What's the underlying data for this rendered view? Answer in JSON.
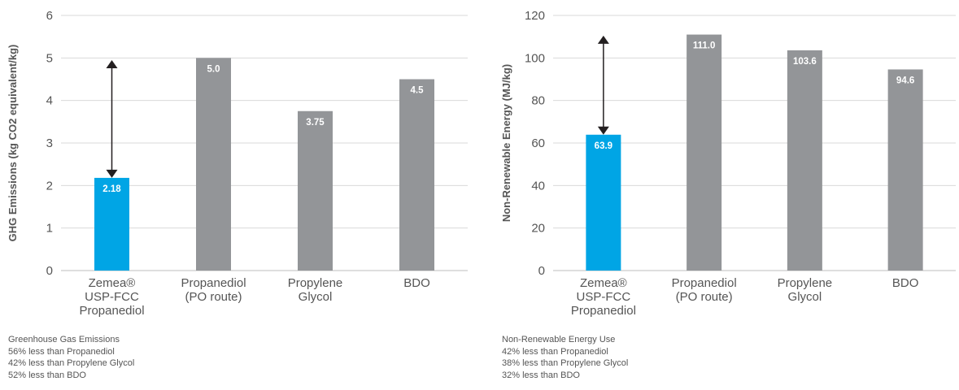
{
  "chart_data": [
    {
      "type": "bar",
      "ylabel": "GHG Emissions (kg CO2 equivalent/kg)",
      "ylim": [
        0,
        6
      ],
      "yticks": [
        0,
        1,
        2,
        3,
        4,
        5,
        6
      ],
      "categories": [
        [
          "Zemea®",
          "USP-FCC",
          "Propanediol"
        ],
        [
          "Propanediol",
          "(PO route)"
        ],
        [
          "Propylene",
          "Glycol"
        ],
        [
          "BDO"
        ]
      ],
      "values": [
        2.18,
        5.0,
        3.75,
        4.5
      ],
      "data_labels": [
        "2.18",
        "5.0",
        "3.75",
        "4.5"
      ],
      "colors": [
        "#00a5e5",
        "#939598",
        "#939598",
        "#939598"
      ],
      "annotation": "double-arrow between Zemea bar and Propanediol (PO route) level",
      "arrow_range": [
        2.18,
        4.95
      ],
      "grid": true
    },
    {
      "type": "bar",
      "ylabel": "Non-Renewable Energy (MJ/kg)",
      "ylim": [
        0,
        120
      ],
      "yticks": [
        0,
        20,
        40,
        60,
        80,
        100,
        120
      ],
      "categories": [
        [
          "Zemea®",
          "USP-FCC",
          "Propanediol"
        ],
        [
          "Propanediol",
          "(PO route)"
        ],
        [
          "Propylene",
          "Glycol"
        ],
        [
          "BDO"
        ]
      ],
      "values": [
        63.9,
        111.0,
        103.6,
        94.6
      ],
      "data_labels": [
        "63.9",
        "111.0",
        "103.6",
        "94.6"
      ],
      "colors": [
        "#00a5e5",
        "#939598",
        "#939598",
        "#939598"
      ],
      "annotation": "double-arrow between Zemea bar and Propanediol (PO route) level",
      "arrow_range": [
        63.9,
        110.5
      ],
      "grid": true
    }
  ],
  "notes_left": [
    "Greenhouse Gas Emissions",
    "56% less than Propanediol",
    "42% less than Propylene Glycol",
    "52% less than BDO"
  ],
  "notes_right": [
    "Non-Renewable Energy Use",
    "42% less than Propanediol",
    "38% less than Propylene Glycol",
    "32% less than BDO"
  ]
}
